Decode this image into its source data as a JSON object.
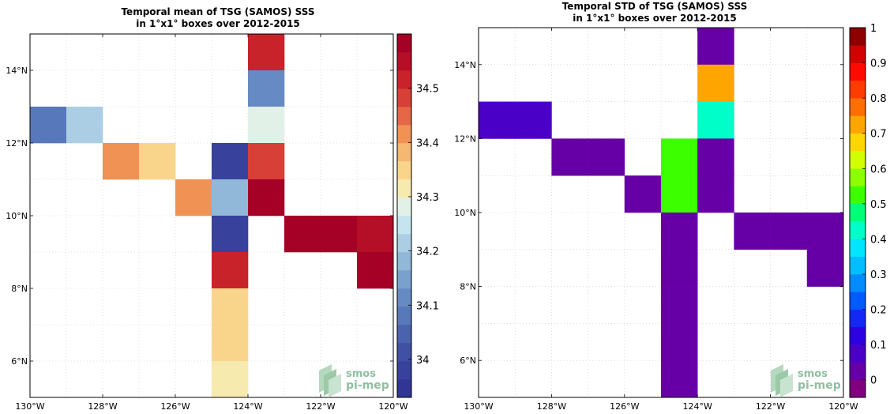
{
  "chart_data": [
    {
      "type": "heatmap",
      "title": "Temporal mean of TSG (SAMOS) SSS",
      "subtitle": "in 1°x1° boxes over 2012-2015",
      "xlim": [
        -130,
        -120
      ],
      "ylim": [
        5,
        15
      ],
      "x_ticks": [
        -130,
        -128,
        -126,
        -124,
        -122,
        -120
      ],
      "x_tick_labels": [
        "130°W",
        "128°W",
        "126°W",
        "124°W",
        "122°W",
        "120°W"
      ],
      "y_ticks": [
        6,
        8,
        10,
        12,
        14
      ],
      "y_tick_labels": [
        "6°N",
        "8°N",
        "10°N",
        "12°N",
        "14°N"
      ],
      "grid": true,
      "colorbar": {
        "min": 33.93,
        "max": 34.6,
        "ticks": [
          34,
          34.1,
          34.2,
          34.3,
          34.4,
          34.5
        ],
        "tick_labels": [
          "34",
          "34.1",
          "34.2",
          "34.3",
          "34.4",
          "34.5"
        ],
        "colormap": "RdYlBu_r",
        "levels": 20
      },
      "cells": [
        {
          "lon": -130,
          "lat": 12,
          "value": 34.08
        },
        {
          "lon": -129,
          "lat": 12,
          "value": 34.22
        },
        {
          "lon": -128,
          "lat": 11,
          "value": 34.42
        },
        {
          "lon": -127,
          "lat": 11,
          "value": 34.36
        },
        {
          "lon": -126,
          "lat": 10,
          "value": 34.42
        },
        {
          "lon": -125,
          "lat": 11,
          "value": 33.98
        },
        {
          "lon": -125,
          "lat": 10,
          "value": 34.19
        },
        {
          "lon": -125,
          "lat": 9,
          "value": 33.98
        },
        {
          "lon": -125,
          "lat": 8,
          "value": 34.51
        },
        {
          "lon": -125,
          "lat": 7,
          "value": 34.36
        },
        {
          "lon": -125,
          "lat": 6,
          "value": 34.36
        },
        {
          "lon": -125,
          "lat": 5,
          "value": 34.32
        },
        {
          "lon": -124,
          "lat": 14,
          "value": 34.52
        },
        {
          "lon": -124,
          "lat": 13,
          "value": 34.11
        },
        {
          "lon": -124,
          "lat": 12,
          "value": 34.28
        },
        {
          "lon": -124,
          "lat": 11,
          "value": 34.49
        },
        {
          "lon": -124,
          "lat": 10,
          "value": 34.57
        },
        {
          "lon": -123,
          "lat": 9,
          "value": 34.57
        },
        {
          "lon": -122,
          "lat": 9,
          "value": 34.57
        },
        {
          "lon": -121,
          "lat": 9,
          "value": 34.55
        },
        {
          "lon": -121,
          "lat": 8,
          "value": 34.57
        }
      ],
      "logo": {
        "line1": "smos",
        "line2": "pi-mep"
      }
    },
    {
      "type": "heatmap",
      "title": "Temporal STD of TSG (SAMOS) SSS",
      "subtitle": "in 1°x1° boxes over 2012-2015",
      "xlim": [
        -130,
        -120
      ],
      "ylim": [
        5,
        15
      ],
      "x_ticks": [
        -130,
        -128,
        -126,
        -124,
        -122,
        -120
      ],
      "x_tick_labels": [
        "130°W",
        "128°W",
        "126°W",
        "124°W",
        "122°W",
        "120°W"
      ],
      "y_ticks": [
        6,
        8,
        10,
        12,
        14
      ],
      "y_tick_labels": [
        "6°N",
        "8°N",
        "10°N",
        "12°N",
        "14°N"
      ],
      "grid": true,
      "colorbar": {
        "min": -0.05,
        "max": 1.0,
        "ticks": [
          0,
          0.1,
          0.2,
          0.3,
          0.4,
          0.5,
          0.6,
          0.7,
          0.8,
          0.9,
          1
        ],
        "tick_labels": [
          "0",
          "0.1",
          "0.2",
          "0.3",
          "0.4",
          "0.5",
          "0.6",
          "0.7",
          "0.8",
          "0.9",
          "1"
        ],
        "colormap": "jet-like",
        "levels": 21
      },
      "cells": [
        {
          "lon": -130,
          "lat": 12,
          "value": 0.05
        },
        {
          "lon": -129,
          "lat": 12,
          "value": 0.05
        },
        {
          "lon": -128,
          "lat": 11,
          "value": 0.0
        },
        {
          "lon": -127,
          "lat": 11,
          "value": 0.0
        },
        {
          "lon": -126,
          "lat": 10,
          "value": 0.0
        },
        {
          "lon": -125,
          "lat": 11,
          "value": 0.5
        },
        {
          "lon": -125,
          "lat": 10,
          "value": 0.5
        },
        {
          "lon": -125,
          "lat": 9,
          "value": 0.0
        },
        {
          "lon": -125,
          "lat": 8,
          "value": 0.0
        },
        {
          "lon": -125,
          "lat": 7,
          "value": 0.0
        },
        {
          "lon": -125,
          "lat": 6,
          "value": 0.0
        },
        {
          "lon": -125,
          "lat": 5,
          "value": 0.0
        },
        {
          "lon": -124,
          "lat": 14,
          "value": 0.0
        },
        {
          "lon": -124,
          "lat": 13,
          "value": 0.7
        },
        {
          "lon": -124,
          "lat": 12,
          "value": 0.4
        },
        {
          "lon": -124,
          "lat": 11,
          "value": 0.0
        },
        {
          "lon": -124,
          "lat": 10,
          "value": 0.0
        },
        {
          "lon": -123,
          "lat": 9,
          "value": 0.0
        },
        {
          "lon": -122,
          "lat": 9,
          "value": 0.0
        },
        {
          "lon": -121,
          "lat": 9,
          "value": 0.0
        },
        {
          "lon": -121,
          "lat": 8,
          "value": 0.0
        }
      ],
      "logo": {
        "line1": "smos",
        "line2": "pi-mep"
      }
    }
  ]
}
